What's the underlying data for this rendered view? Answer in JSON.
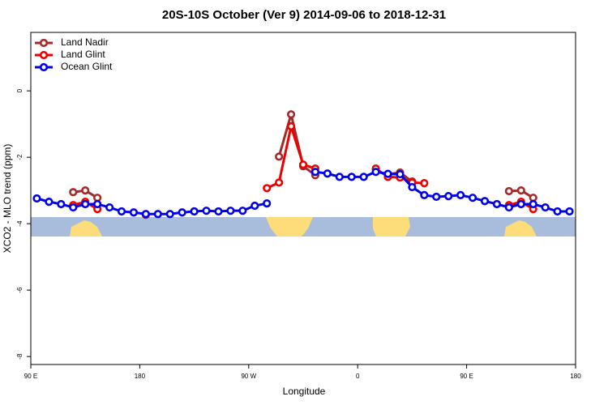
{
  "chart_data": {
    "type": "line",
    "title": "20S-10S October (Ver 9)   2014-09-06 to 2018-12-31",
    "xlabel": "Longitude",
    "ylabel": "XCO2 - MLO trend (ppm)",
    "x": [
      95,
      105,
      115,
      125,
      135,
      145,
      155,
      165,
      175,
      185,
      195,
      205,
      215,
      225,
      235,
      245,
      255,
      265,
      275,
      285,
      295,
      305,
      315,
      325,
      335,
      345,
      355,
      365,
      375,
      385,
      395,
      405,
      415,
      425,
      435,
      445,
      455,
      465,
      475,
      485,
      495,
      505,
      515,
      525,
      535
    ],
    "series": [
      {
        "name": "Land Nadir",
        "color": "#a52a2a",
        "values": [
          null,
          null,
          null,
          -3.05,
          -3.0,
          -3.22,
          null,
          null,
          null,
          null,
          null,
          null,
          null,
          null,
          null,
          null,
          null,
          null,
          null,
          null,
          -1.98,
          -0.71,
          -2.27,
          -2.54,
          null,
          null,
          null,
          null,
          null,
          -2.51,
          -2.46,
          -2.73,
          null,
          null,
          null,
          null,
          null,
          null,
          null,
          -3.02,
          -3.0,
          -3.22,
          null,
          null,
          null
        ]
      },
      {
        "name": "Land Glint",
        "color": "#ee0000",
        "values": [
          null,
          null,
          null,
          -3.44,
          -3.34,
          -3.56,
          null,
          null,
          null,
          -3.73,
          null,
          null,
          null,
          -3.63,
          null,
          null,
          null,
          null,
          null,
          -2.93,
          -2.76,
          -1.07,
          -2.22,
          -2.34,
          null,
          null,
          null,
          null,
          -2.34,
          -2.59,
          -2.61,
          -2.76,
          -2.78,
          null,
          null,
          null,
          null,
          null,
          null,
          -3.44,
          -3.34,
          -3.56,
          null,
          null,
          null
        ]
      },
      {
        "name": "Ocean Glint",
        "color": "#0000ee",
        "values": [
          -3.24,
          -3.34,
          -3.41,
          -3.51,
          -3.41,
          -3.41,
          -3.51,
          -3.63,
          -3.66,
          -3.71,
          -3.71,
          -3.71,
          -3.66,
          -3.63,
          -3.61,
          -3.63,
          -3.61,
          -3.61,
          -3.46,
          -3.39,
          null,
          null,
          null,
          -2.44,
          -2.49,
          -2.59,
          -2.59,
          -2.59,
          -2.44,
          -2.5,
          -2.51,
          -2.9,
          -3.14,
          -3.19,
          -3.17,
          -3.14,
          -3.22,
          -3.32,
          -3.41,
          -3.51,
          -3.41,
          -3.41,
          -3.51,
          -3.63,
          -3.63
        ]
      }
    ],
    "xlim": [
      90,
      540
    ],
    "xticks": [
      {
        "value": 90,
        "label": "90 E"
      },
      180,
      {
        "value": 270,
        "label": "90 W"
      },
      {
        "value": 360,
        "label": "0"
      },
      {
        "value": 450,
        "label": "90 E"
      },
      {
        "value": 540,
        "label": "180"
      }
    ],
    "ylim": [
      -8.24,
      1.76
    ],
    "yticks": [
      0,
      -2,
      -4,
      -6,
      -8
    ],
    "legend": "top-left"
  }
}
